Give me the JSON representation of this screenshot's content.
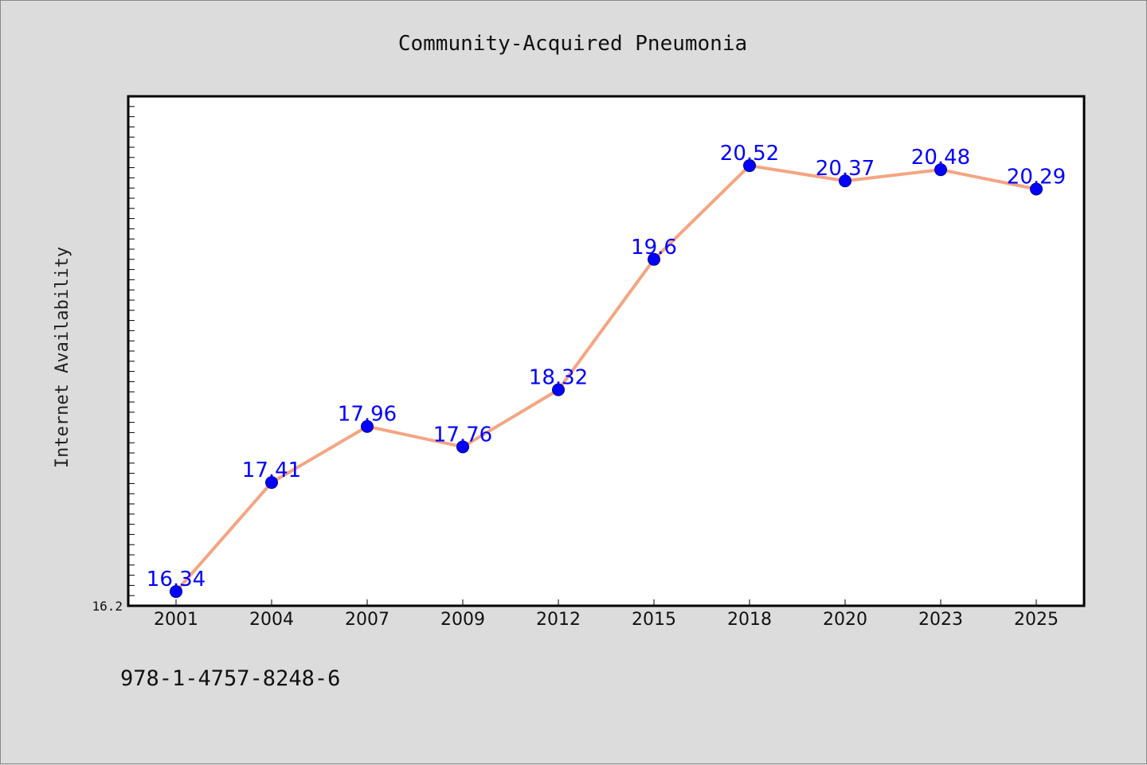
{
  "chart_data": {
    "type": "line",
    "title": "Community-Acquired Pneumonia",
    "xlabel": "",
    "ylabel": "Internet Availability",
    "categories": [
      "2001",
      "2004",
      "2007",
      "2009",
      "2012",
      "2015",
      "2018",
      "2020",
      "2023",
      "2025"
    ],
    "series": [
      {
        "values": [
          16.34,
          17.41,
          17.96,
          17.76,
          18.32,
          19.6,
          20.52,
          20.37,
          20.48,
          20.29
        ],
        "labels": [
          "16.34",
          "17.41",
          "17.96",
          "17.76",
          "18.32",
          "19.6",
          "20.52",
          "20.37",
          "20.48",
          "20.29"
        ]
      }
    ],
    "ylim": [
      16.2,
      21.2
    ],
    "ytick_labels": [
      "16.2"
    ],
    "grid": false,
    "line_color": "#f4a582",
    "marker_color": "#0000ff",
    "label_color": "#0000ff"
  },
  "footer": {
    "code": "978-1-4757-8248-6"
  }
}
